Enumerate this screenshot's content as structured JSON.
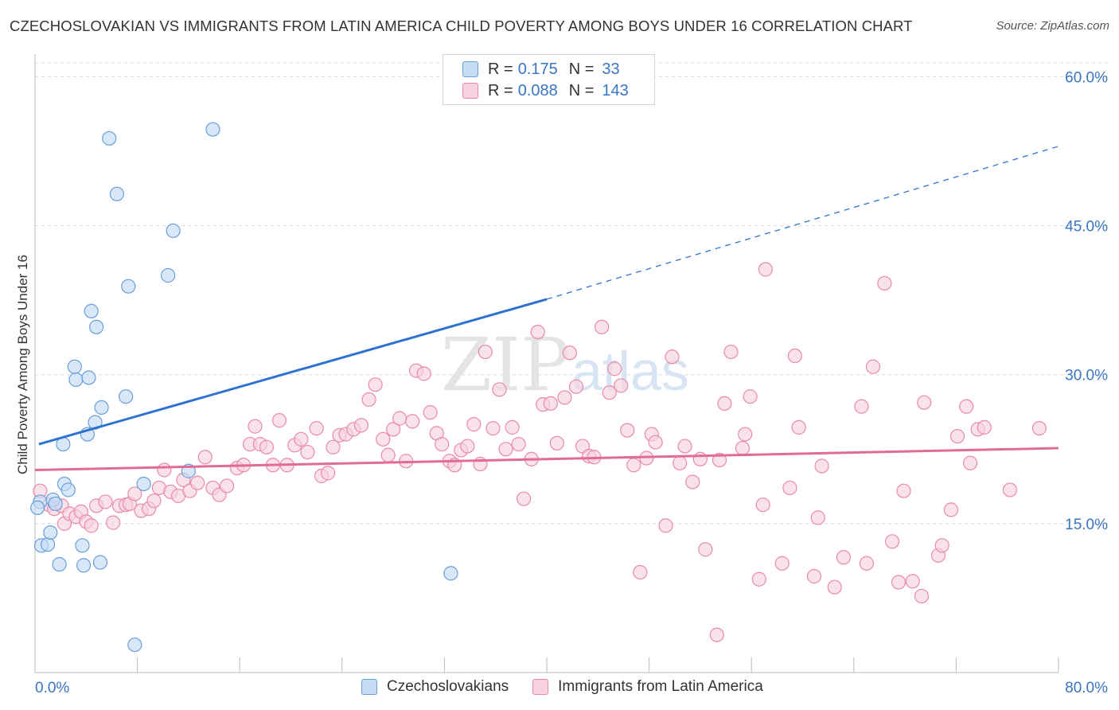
{
  "title": "CZECHOSLOVAKIAN VS IMMIGRANTS FROM LATIN AMERICA CHILD POVERTY AMONG BOYS UNDER 16 CORRELATION CHART",
  "source": "Source: ZipAtlas.com",
  "watermark": "ZIPatlas",
  "legend_top": {
    "rows": [
      {
        "r_label": "R =",
        "r_value": "0.175",
        "n_label": "N =",
        "n_value": "33",
        "color": "#a9c8f0",
        "border": "#6a9ed8"
      },
      {
        "r_label": "R =",
        "r_value": "0.088",
        "n_label": "N =",
        "n_value": "143",
        "color": "#f6bfd0",
        "border": "#e98aa8"
      }
    ]
  },
  "legend_bottom": [
    "Czechoslovakians",
    "Immigrants from Latin America"
  ],
  "chart_data": {
    "type": "scatter",
    "ylabel": "Child Poverty Among Boys Under 16",
    "xlabel": "",
    "xlim": [
      0,
      80
    ],
    "ylim": [
      0,
      60
    ],
    "x_tick_labels": [
      "0.0%",
      "80.0%"
    ],
    "y_tick_labels": [
      "15.0%",
      "30.0%",
      "45.0%",
      "60.0%"
    ],
    "y_ticks": [
      15,
      30,
      45,
      60
    ],
    "colors": {
      "blue": "#6a9ed8",
      "blue_fill": "#c4dbf6",
      "blue_line": "#2f73d0",
      "pink": "#e98aa8",
      "pink_fill": "#f8d3de",
      "pink_line": "#e26a96",
      "axis_text": "#3a75c4"
    },
    "series": [
      {
        "name": "Czechoslovakians",
        "points": [
          [
            0.4,
            17.2
          ],
          [
            0.5,
            12.8
          ],
          [
            1.0,
            12.9
          ],
          [
            1.2,
            14.1
          ],
          [
            1.4,
            17.4
          ],
          [
            1.6,
            17.0
          ],
          [
            1.9,
            10.9
          ],
          [
            2.2,
            23.0
          ],
          [
            2.3,
            19.0
          ],
          [
            2.6,
            18.4
          ],
          [
            3.1,
            30.8
          ],
          [
            3.2,
            29.5
          ],
          [
            3.7,
            12.8
          ],
          [
            3.8,
            10.8
          ],
          [
            4.1,
            24.0
          ],
          [
            4.2,
            29.7
          ],
          [
            4.4,
            36.4
          ],
          [
            4.7,
            25.2
          ],
          [
            4.8,
            34.8
          ],
          [
            5.1,
            11.1
          ],
          [
            5.2,
            26.7
          ],
          [
            5.8,
            53.8
          ],
          [
            6.4,
            48.2
          ],
          [
            7.1,
            27.8
          ],
          [
            7.3,
            38.9
          ],
          [
            7.8,
            2.8
          ],
          [
            8.5,
            19.0
          ],
          [
            10.4,
            40.0
          ],
          [
            10.8,
            44.5
          ],
          [
            12.0,
            20.3
          ],
          [
            13.9,
            54.7
          ],
          [
            32.5,
            10.0
          ],
          [
            0.2,
            16.6
          ]
        ],
        "trend": {
          "x": [
            0.3,
            40.0
          ],
          "y": [
            23.0,
            37.6
          ],
          "dashed_to": [
            80.0,
            53.0
          ]
        }
      },
      {
        "name": "Immigrants from Latin America",
        "points": [
          [
            0.4,
            18.3
          ],
          [
            1.1,
            16.9
          ],
          [
            1.5,
            16.5
          ],
          [
            2.1,
            16.8
          ],
          [
            2.3,
            15.0
          ],
          [
            2.7,
            16.0
          ],
          [
            3.2,
            15.7
          ],
          [
            3.6,
            16.2
          ],
          [
            4.0,
            15.2
          ],
          [
            4.4,
            14.8
          ],
          [
            4.8,
            16.8
          ],
          [
            5.5,
            17.2
          ],
          [
            6.1,
            15.1
          ],
          [
            6.6,
            16.8
          ],
          [
            7.1,
            16.9
          ],
          [
            7.4,
            17.0
          ],
          [
            7.8,
            18.0
          ],
          [
            8.3,
            16.3
          ],
          [
            8.9,
            16.5
          ],
          [
            9.3,
            17.3
          ],
          [
            9.7,
            18.6
          ],
          [
            10.1,
            20.4
          ],
          [
            10.6,
            18.2
          ],
          [
            11.2,
            17.8
          ],
          [
            11.6,
            19.4
          ],
          [
            12.1,
            18.3
          ],
          [
            12.7,
            19.1
          ],
          [
            13.3,
            21.7
          ],
          [
            13.9,
            18.6
          ],
          [
            14.4,
            17.9
          ],
          [
            15.0,
            18.8
          ],
          [
            15.8,
            20.6
          ],
          [
            16.3,
            20.9
          ],
          [
            16.8,
            23.0
          ],
          [
            17.2,
            24.8
          ],
          [
            17.6,
            23.0
          ],
          [
            18.1,
            22.7
          ],
          [
            18.6,
            20.9
          ],
          [
            19.1,
            25.4
          ],
          [
            19.7,
            20.9
          ],
          [
            20.3,
            22.9
          ],
          [
            20.8,
            23.5
          ],
          [
            21.3,
            22.2
          ],
          [
            22.0,
            24.6
          ],
          [
            22.4,
            19.8
          ],
          [
            22.9,
            20.1
          ],
          [
            23.3,
            22.7
          ],
          [
            23.8,
            23.9
          ],
          [
            24.3,
            24.0
          ],
          [
            24.9,
            24.5
          ],
          [
            25.5,
            24.9
          ],
          [
            26.1,
            27.5
          ],
          [
            26.6,
            29.0
          ],
          [
            27.2,
            23.5
          ],
          [
            27.6,
            21.9
          ],
          [
            28.0,
            24.5
          ],
          [
            28.5,
            25.6
          ],
          [
            29.0,
            21.3
          ],
          [
            29.5,
            25.3
          ],
          [
            29.8,
            30.4
          ],
          [
            30.4,
            30.1
          ],
          [
            30.9,
            26.2
          ],
          [
            31.4,
            24.1
          ],
          [
            31.8,
            23.0
          ],
          [
            32.4,
            21.3
          ],
          [
            32.8,
            20.9
          ],
          [
            33.3,
            22.4
          ],
          [
            33.8,
            22.8
          ],
          [
            34.3,
            25.0
          ],
          [
            34.8,
            21.0
          ],
          [
            35.2,
            32.3
          ],
          [
            35.8,
            24.6
          ],
          [
            36.3,
            28.5
          ],
          [
            36.8,
            22.5
          ],
          [
            37.3,
            24.7
          ],
          [
            37.8,
            23.0
          ],
          [
            38.2,
            17.5
          ],
          [
            38.8,
            21.5
          ],
          [
            39.3,
            34.3
          ],
          [
            39.7,
            27.0
          ],
          [
            40.3,
            27.1
          ],
          [
            40.8,
            23.1
          ],
          [
            41.4,
            27.7
          ],
          [
            41.8,
            32.2
          ],
          [
            42.3,
            28.8
          ],
          [
            42.8,
            22.8
          ],
          [
            43.3,
            21.8
          ],
          [
            43.7,
            21.7
          ],
          [
            44.3,
            34.8
          ],
          [
            44.9,
            28.2
          ],
          [
            45.3,
            30.6
          ],
          [
            45.8,
            28.9
          ],
          [
            46.3,
            24.4
          ],
          [
            46.8,
            20.9
          ],
          [
            47.3,
            10.1
          ],
          [
            47.8,
            21.6
          ],
          [
            48.2,
            24.0
          ],
          [
            48.5,
            23.2
          ],
          [
            49.3,
            14.8
          ],
          [
            49.8,
            31.8
          ],
          [
            50.4,
            21.1
          ],
          [
            50.8,
            22.8
          ],
          [
            51.4,
            19.2
          ],
          [
            52.0,
            21.5
          ],
          [
            52.4,
            12.4
          ],
          [
            53.3,
            3.8
          ],
          [
            53.5,
            21.4
          ],
          [
            53.9,
            27.1
          ],
          [
            54.4,
            32.3
          ],
          [
            55.3,
            22.6
          ],
          [
            55.5,
            24.0
          ],
          [
            55.9,
            27.8
          ],
          [
            56.6,
            9.4
          ],
          [
            56.9,
            16.9
          ],
          [
            57.1,
            40.6
          ],
          [
            58.4,
            11.0
          ],
          [
            59.0,
            18.6
          ],
          [
            59.4,
            31.9
          ],
          [
            59.7,
            24.7
          ],
          [
            60.9,
            9.7
          ],
          [
            61.2,
            15.6
          ],
          [
            61.5,
            20.8
          ],
          [
            62.5,
            8.6
          ],
          [
            63.2,
            11.6
          ],
          [
            64.6,
            26.8
          ],
          [
            65.0,
            11.0
          ],
          [
            65.5,
            30.8
          ],
          [
            66.4,
            39.2
          ],
          [
            67.0,
            13.2
          ],
          [
            67.5,
            9.1
          ],
          [
            67.9,
            18.3
          ],
          [
            68.6,
            9.2
          ],
          [
            69.3,
            7.7
          ],
          [
            69.5,
            27.2
          ],
          [
            70.6,
            11.8
          ],
          [
            70.9,
            12.8
          ],
          [
            71.6,
            16.4
          ],
          [
            72.1,
            23.8
          ],
          [
            72.8,
            26.8
          ],
          [
            73.1,
            21.1
          ],
          [
            73.7,
            24.5
          ],
          [
            74.2,
            24.7
          ],
          [
            76.2,
            18.4
          ],
          [
            78.5,
            24.6
          ]
        ],
        "trend": {
          "x": [
            0.0,
            80.0
          ],
          "y": [
            20.4,
            22.6
          ]
        }
      }
    ]
  }
}
